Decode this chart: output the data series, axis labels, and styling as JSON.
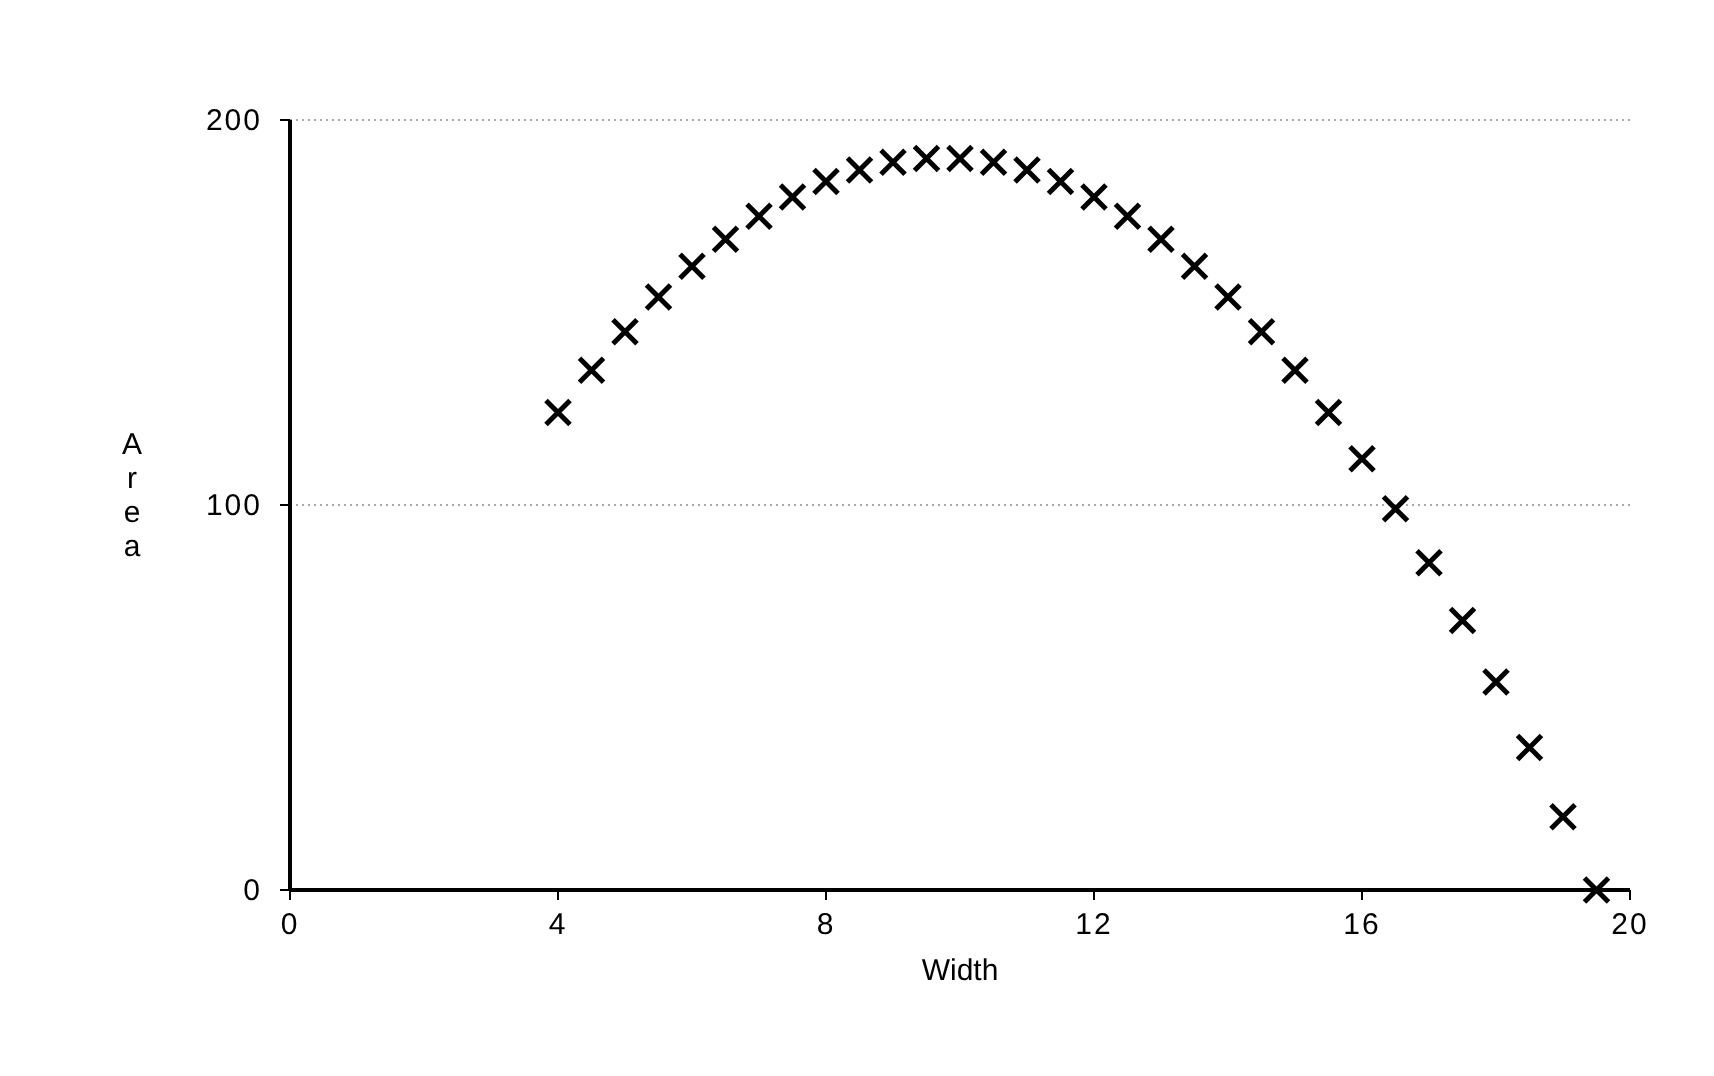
{
  "chart_data": {
    "type": "scatter",
    "xlabel": "Width",
    "ylabel": "Area",
    "x": [
      4,
      4.5,
      5,
      5.5,
      6,
      6.5,
      7,
      7.5,
      8,
      8.5,
      9,
      9.5,
      10,
      10.5,
      11,
      11.5,
      12,
      12.5,
      13,
      13.5,
      14,
      14.5,
      15,
      15.5,
      16,
      16.5,
      17,
      17.5,
      18,
      18.5,
      19,
      19.5
    ],
    "values": [
      124,
      135,
      145,
      154,
      162,
      169,
      175,
      180,
      184,
      187,
      189,
      190,
      190,
      189,
      187,
      184,
      180,
      175,
      169,
      162,
      154,
      145,
      135,
      124,
      112,
      99,
      85,
      70,
      54,
      37,
      19,
      0
    ],
    "color": "#000000",
    "marker": "cross",
    "xlim": [
      0,
      20
    ],
    "xticks": [
      0,
      4,
      8,
      12,
      16,
      20
    ],
    "ylim": [
      0,
      200
    ],
    "yticks": [
      0,
      100,
      200
    ],
    "grid": "y"
  }
}
